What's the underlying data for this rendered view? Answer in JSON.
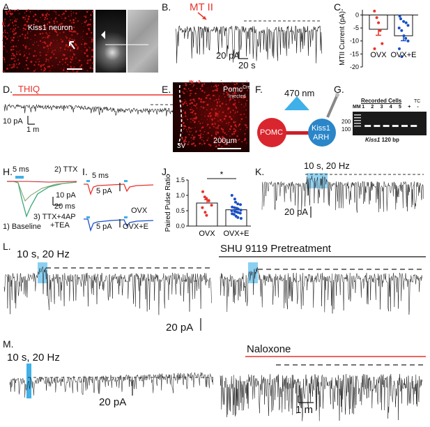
{
  "panel_labels": [
    "A.",
    "B.",
    "C.",
    "D.",
    "E.",
    "F.",
    "G.",
    "H.",
    "I.",
    "J.",
    "K.",
    "L.",
    "M."
  ],
  "A": {
    "neuron_label": "Kiss1 neuron"
  },
  "B": {
    "drug": "MT II",
    "scale_y": "20 pA",
    "scale_x": "20 s"
  },
  "C": {
    "ylabel": "MTII Current (pA)",
    "categories": [
      "OVX",
      "OVX+E"
    ],
    "yticks": [
      "0",
      "-5",
      "-10",
      "-15",
      "-20"
    ]
  },
  "D": {
    "drug": "THIQ",
    "scale_y": "10 pA",
    "scale_x": "1 m"
  },
  "E": {
    "label_main": "Pomc",
    "label_sup": "Cre",
    "label_sub": "Injected",
    "region": "3V",
    "scale": "200µm"
  },
  "F": {
    "light": "470 nm",
    "source": "POMC",
    "target_line1": "Kiss1",
    "target_line2": "ARH"
  },
  "G": {
    "header": "Recorded Cells",
    "lanes": [
      "MM",
      "1",
      "2",
      "3",
      "4",
      "5",
      "+",
      "-"
    ],
    "tc": "TC",
    "ladder": [
      "200",
      "100"
    ],
    "caption_gene": "Kiss1",
    "caption_bp": " 120 bp"
  },
  "H": {
    "time_scale": "5 ms",
    "ttx": "2) TTX",
    "scale_y": "10 pA",
    "scale_x": "20 ms",
    "ttx4ap_1": "3) TTX+4AP",
    "ttx4ap_2": "+TEA",
    "baseline": "1) Baseline"
  },
  "I": {
    "time_scale": "5 ms",
    "scale_y": "5 pA",
    "ovx": "OVX",
    "ovxe": "OVX+E"
  },
  "J": {
    "ylabel": "Paired Pulse Ratio",
    "categories": [
      "OVX",
      "OVX+E"
    ],
    "yticks": [
      "0.0",
      "0.5",
      "1.0",
      "1.5"
    ],
    "sig": "*"
  },
  "K": {
    "stim": "10 s, 20 Hz",
    "scale_y": "20 pA"
  },
  "L": {
    "stim": "10 s, 20 Hz",
    "pretreat": "SHU 9119 Pretreatment",
    "scale_y": "20 pA"
  },
  "M": {
    "stim": "10 s, 20 Hz",
    "drug": "Naloxone",
    "scale_y": "20 pA",
    "scale_x": "1 m"
  },
  "chart_data": [
    {
      "type": "bar",
      "title": "",
      "ylabel": "MTII Current (pA)",
      "categories": [
        "OVX",
        "OVX+E"
      ],
      "values": [
        -5.5,
        -8.0
      ],
      "errors": [
        2.3,
        1.9
      ],
      "ylim": [
        -20,
        2
      ],
      "points": {
        "OVX": [
          1.5,
          -1,
          -3,
          -6,
          -11,
          -13
        ],
        "OVX+E": [
          -0.5,
          -1.5,
          -2.5,
          -3,
          -4,
          -5,
          -6,
          -8,
          -9,
          -10,
          -13,
          -16
        ]
      },
      "colors": {
        "OVX": "#e8322a",
        "OVX+E": "#1a4fc7"
      }
    },
    {
      "type": "bar",
      "title": "",
      "ylabel": "Paired Pulse Ratio",
      "categories": [
        "OVX",
        "OVX+E"
      ],
      "values": [
        0.75,
        0.53
      ],
      "errors": [
        0.11,
        0.05
      ],
      "ylim": [
        0,
        1.5
      ],
      "points": {
        "OVX": [
          1.12,
          0.95,
          0.9,
          0.82,
          0.68,
          0.6,
          0.45,
          0.35
        ],
        "OVX+E": [
          1.0,
          0.88,
          0.78,
          0.72,
          0.7,
          0.62,
          0.6,
          0.58,
          0.55,
          0.52,
          0.5,
          0.48,
          0.46,
          0.44,
          0.42,
          0.4,
          0.38,
          0.32,
          0.28,
          0.25
        ]
      },
      "colors": {
        "OVX": "#e8322a",
        "OVX+E": "#1a4fc7"
      },
      "significance": "*"
    }
  ]
}
